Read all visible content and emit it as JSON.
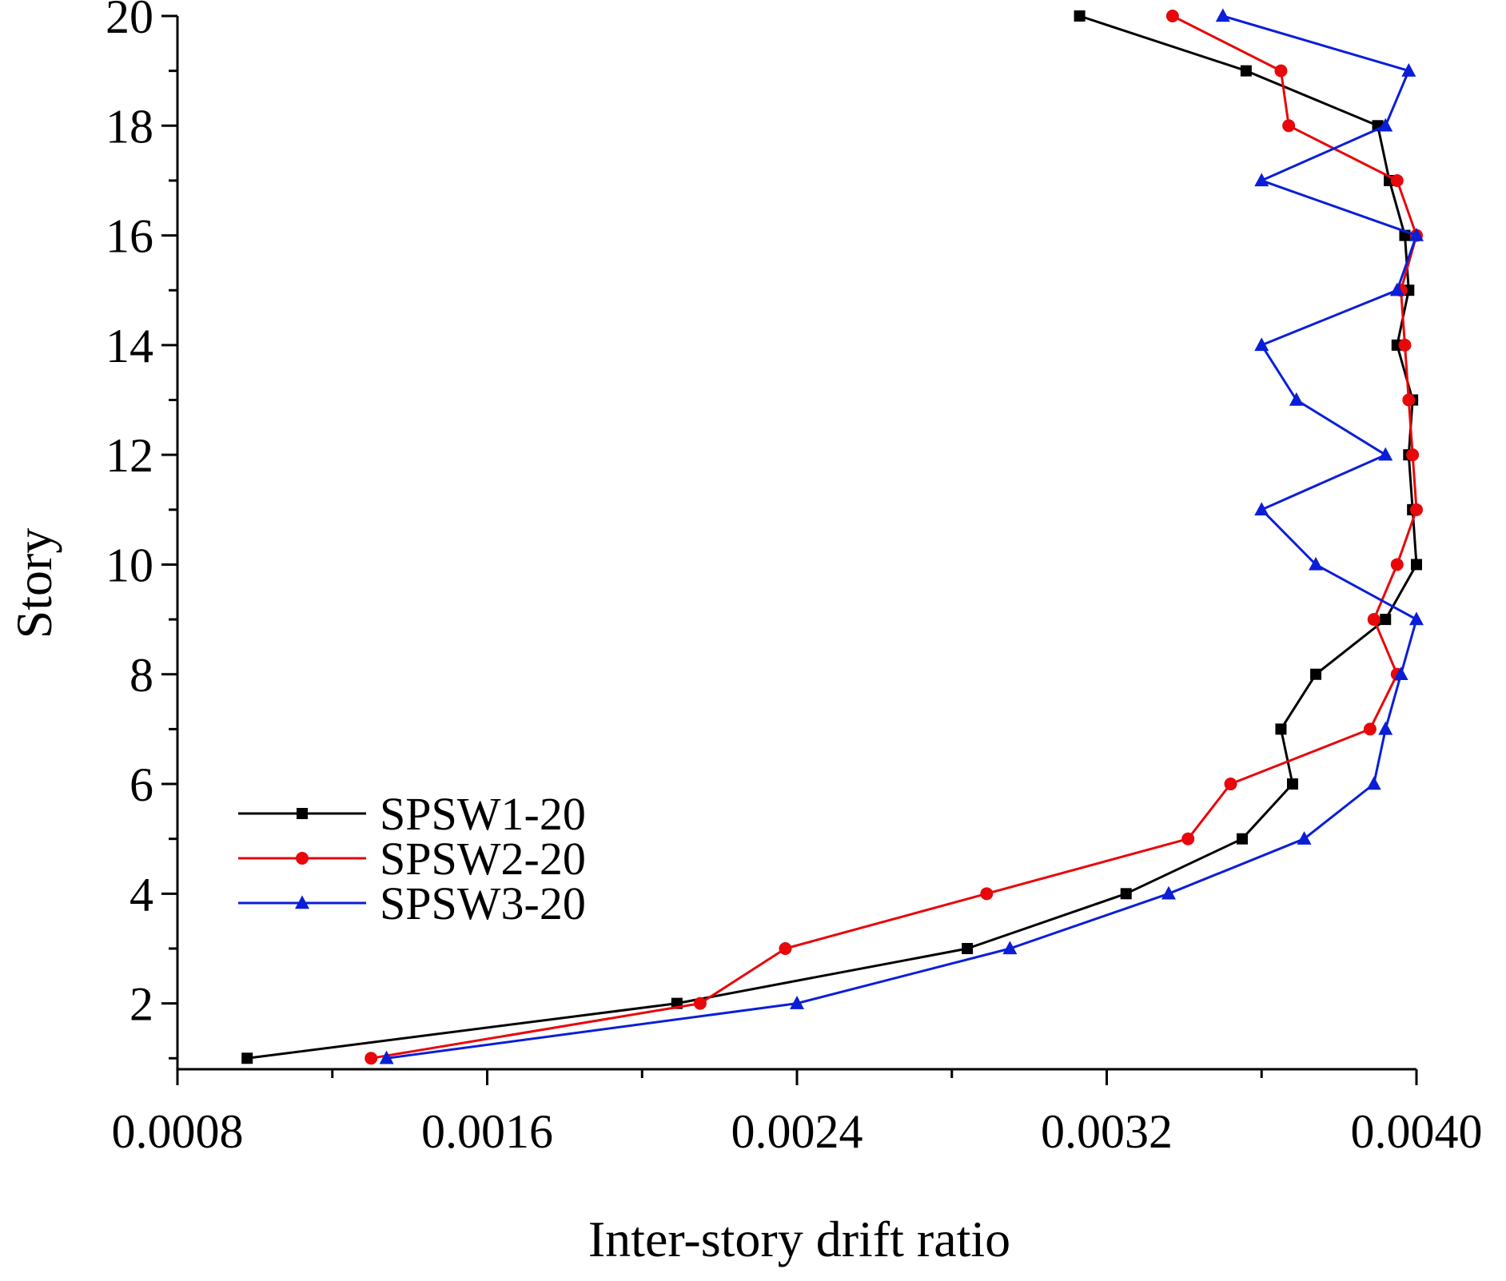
{
  "chart_data": {
    "type": "line",
    "title": "",
    "xlabel": "Inter-story drift ratio",
    "ylabel": "Story",
    "xlim": [
      0.0008,
      0.004
    ],
    "ylim": [
      0.8,
      20
    ],
    "x_ticks": [
      0.0008,
      0.0016,
      0.0024,
      0.0032,
      0.004
    ],
    "x_tick_labels": [
      "0.0008",
      "0.0016",
      "0.0024",
      "0.0032",
      "0.0040"
    ],
    "y_ticks": [
      2,
      4,
      6,
      8,
      10,
      12,
      14,
      16,
      18,
      20
    ],
    "y_tick_labels": [
      "2",
      "4",
      "6",
      "8",
      "10",
      "12",
      "14",
      "16",
      "18",
      "20"
    ],
    "grid": false,
    "legend_position": "bottom-left",
    "y": [
      1,
      2,
      3,
      4,
      5,
      6,
      7,
      8,
      9,
      10,
      11,
      12,
      13,
      14,
      15,
      16,
      17,
      18,
      19,
      20
    ],
    "series": [
      {
        "name": "SPSW1-20",
        "color": "#000000",
        "marker": "square",
        "x": [
          0.00098,
          0.00209,
          0.00284,
          0.00325,
          0.00355,
          0.00368,
          0.00365,
          0.00374,
          0.00392,
          0.004,
          0.00399,
          0.00398,
          0.00399,
          0.00395,
          0.00398,
          0.00397,
          0.00393,
          0.0039,
          0.00356,
          0.00313
        ]
      },
      {
        "name": "SPSW2-20",
        "color": "#e8070a",
        "marker": "circle",
        "x": [
          0.0013,
          0.00215,
          0.00237,
          0.00289,
          0.00341,
          0.00352,
          0.00388,
          0.00395,
          0.00389,
          0.00395,
          0.004,
          0.00399,
          0.00398,
          0.00397,
          0.00396,
          0.004,
          0.00395,
          0.00367,
          0.00365,
          0.00337
        ]
      },
      {
        "name": "SPSW3-20",
        "color": "#0a1ed8",
        "marker": "triangle",
        "x": [
          0.00134,
          0.0024,
          0.00295,
          0.00336,
          0.00371,
          0.00389,
          0.00392,
          0.00396,
          0.004,
          0.00374,
          0.0036,
          0.00392,
          0.00369,
          0.0036,
          0.00395,
          0.004,
          0.0036,
          0.00392,
          0.00398,
          0.0035
        ]
      }
    ]
  }
}
